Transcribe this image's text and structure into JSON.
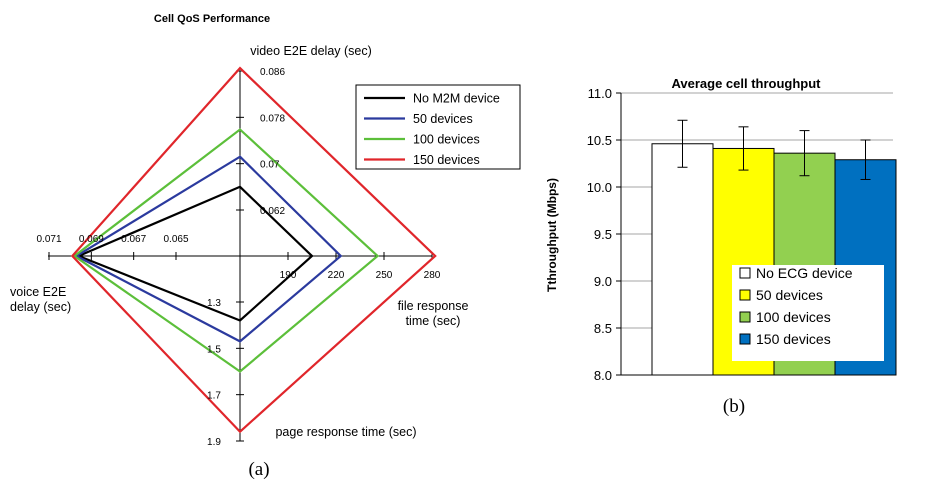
{
  "chart_data": [
    {
      "type": "radar",
      "title": "Cell QoS Performance",
      "caption": "(a)",
      "axes": [
        {
          "name": "video E2E delay (sec)",
          "ticks": [
            "0.086",
            "0.078",
            "0.07",
            "0.062"
          ]
        },
        {
          "name": "file response time (sec)",
          "ticks": [
            "190",
            "220",
            "250",
            "280"
          ]
        },
        {
          "name": "page response time (sec)",
          "ticks": [
            "1.3",
            "1.5",
            "1.7",
            "1.9"
          ]
        },
        {
          "name": "voice E2E delay (sec)",
          "ticks": [
            "0.071",
            "0.069",
            "0.067",
            "0.065"
          ]
        }
      ],
      "series": [
        {
          "name": "No M2M device",
          "color": "#000000",
          "values": [
            0.066,
            205,
            1.38,
            0.0696
          ]
        },
        {
          "name": "50 devices",
          "color": "#2b3a9e",
          "values": [
            0.0712,
            223,
            1.47,
            0.0697
          ]
        },
        {
          "name": "100 devices",
          "color": "#5cbf3a",
          "values": [
            0.0759,
            246,
            1.6,
            0.0698
          ]
        },
        {
          "name": "150 devices",
          "color": "#e0262b",
          "values": [
            0.0865,
            282,
            1.86,
            0.0699
          ]
        }
      ],
      "legend": "top-right"
    },
    {
      "type": "bar",
      "title": "Average cell throughput",
      "caption": "(b)",
      "ylabel": "Tthroughput (Mbps)",
      "ylim": [
        8.0,
        11.0
      ],
      "yticks": [
        "8.0",
        "8.5",
        "9.0",
        "9.5",
        "10.0",
        "10.5",
        "11.0"
      ],
      "series": [
        {
          "name": "No ECG device",
          "color": "#ffffff",
          "value": 10.46,
          "error": 0.25
        },
        {
          "name": "50 devices",
          "color": "#ffff00",
          "value": 10.41,
          "error": 0.23
        },
        {
          "name": "100 devices",
          "color": "#92d050",
          "value": 10.36,
          "error": 0.24
        },
        {
          "name": "150 devices",
          "color": "#0070c0",
          "value": 10.29,
          "error": 0.21
        }
      ],
      "legend": "bottom-right"
    }
  ]
}
